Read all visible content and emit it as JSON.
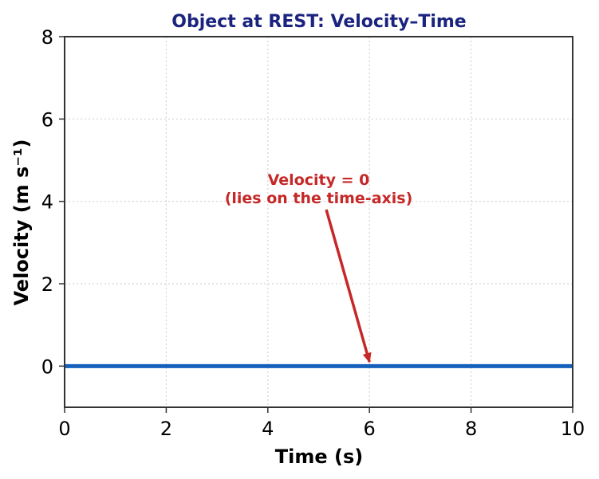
{
  "chart_data": {
    "type": "line",
    "title": "Object at REST: Velocity–Time",
    "xlabel": "Time (s)",
    "ylabel": "Velocity (m s⁻¹)",
    "xlim": [
      0,
      10
    ],
    "ylim": [
      -1,
      8
    ],
    "x_ticks": [
      0,
      2,
      4,
      6,
      8,
      10
    ],
    "y_ticks": [
      0,
      2,
      4,
      6,
      8
    ],
    "grid": true,
    "legend": "none",
    "series": [
      {
        "x": [
          0,
          10
        ],
        "y": [
          0,
          0
        ]
      }
    ],
    "annotations": [
      {
        "lines": [
          "Velocity = 0",
          "(lies on the time-axis)"
        ],
        "text_x": 5,
        "text_y": 4.4,
        "arrow_from": [
          5.15,
          3.8
        ],
        "arrow_to": [
          6,
          0.1
        ]
      }
    ],
    "colors": {
      "line": "#1560bd",
      "title": "#1a237e",
      "annotation": "#c62828",
      "axes": "#333333",
      "grid": "#d3d3d3"
    }
  }
}
